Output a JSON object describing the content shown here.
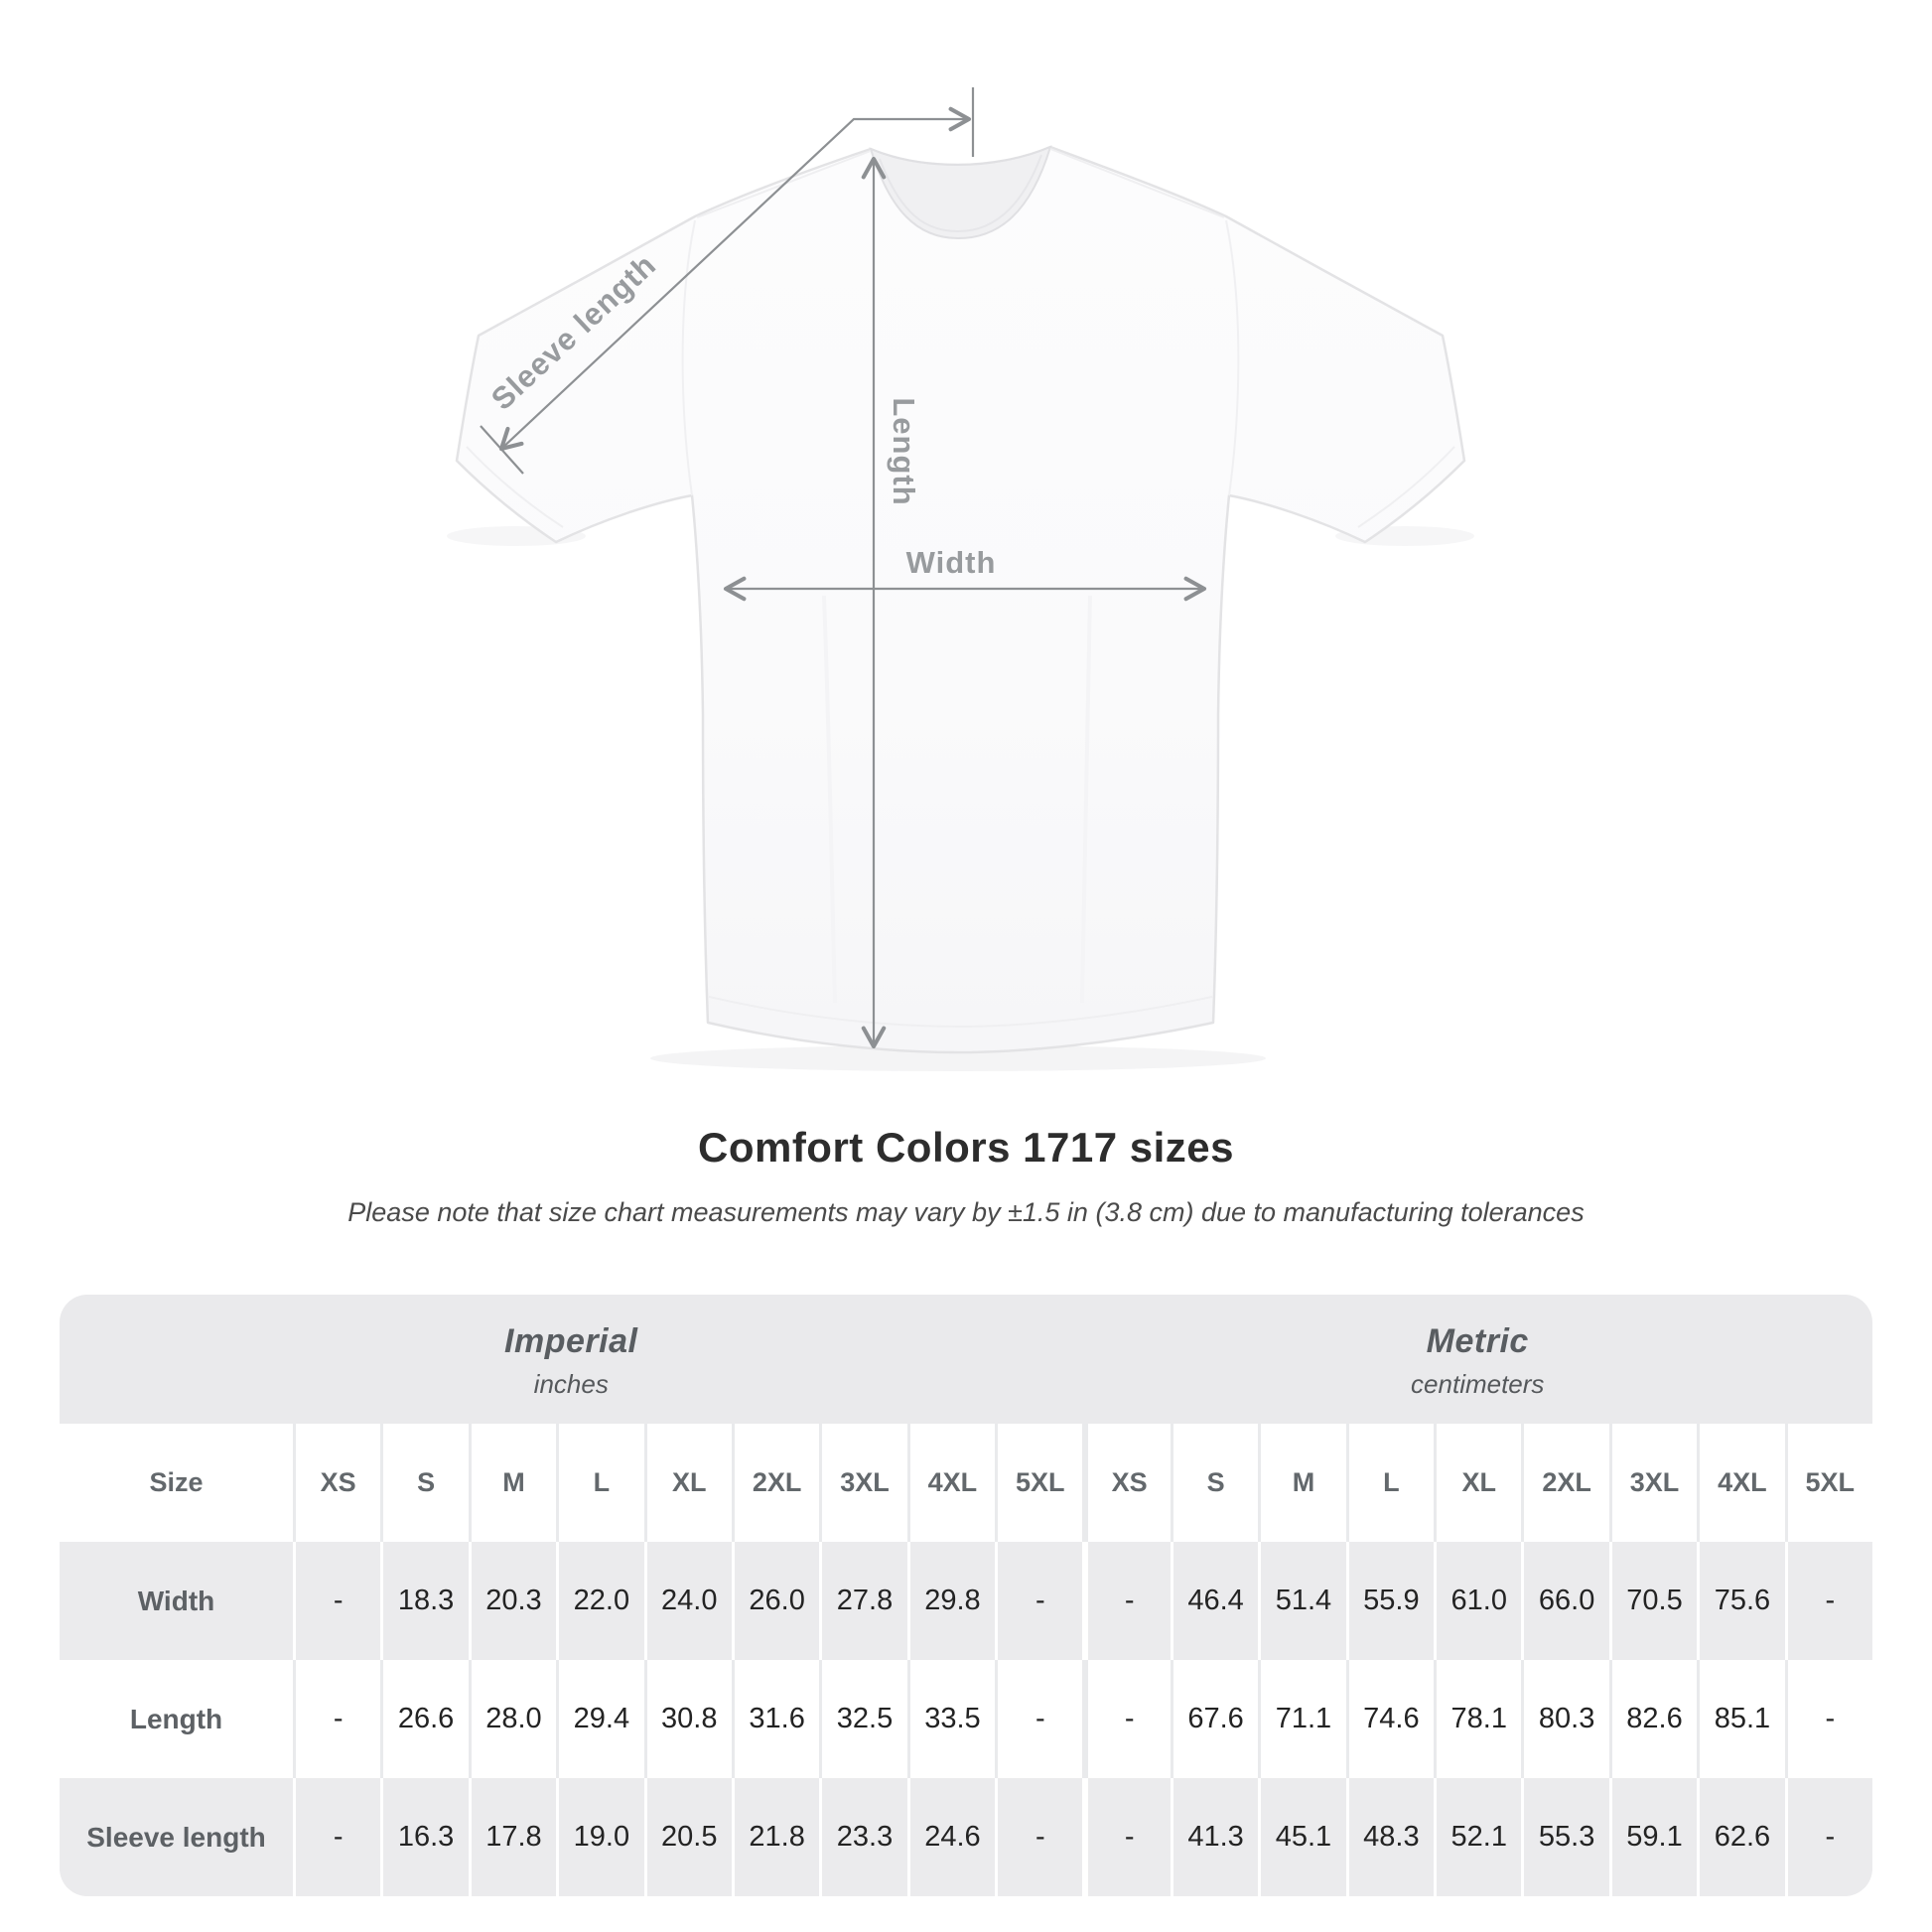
{
  "title": "Comfort Colors 1717 sizes",
  "subtitle": "Please note that size chart measurements may vary by ±1.5 in (3.8 cm) due to manufacturing tolerances",
  "diagram": {
    "sleeve_label": "Sleeve length",
    "length_label": "Length",
    "width_label": "Width",
    "line_color": "#8d9093",
    "label_color": "#989b9e"
  },
  "colors": {
    "band_bg": "#eaeaec",
    "row_alt_bg": "#ebebed",
    "header_text": "#63686c",
    "value_text": "#232323",
    "title_text": "#2d2d2d"
  },
  "chart_data": {
    "type": "table",
    "title": "Comfort Colors 1717 sizes",
    "note": "Please note that size chart measurements may vary by ±1.5 in (3.8 cm) due to manufacturing tolerances",
    "size_header": "Size",
    "sizes": [
      "XS",
      "S",
      "M",
      "L",
      "XL",
      "2XL",
      "3XL",
      "4XL",
      "5XL"
    ],
    "column_groups": [
      {
        "label": "Imperial",
        "sublabel": "inches"
      },
      {
        "label": "Metric",
        "sublabel": "centimeters"
      }
    ],
    "rows": [
      {
        "label": "Width",
        "imperial": [
          "-",
          "18.3",
          "20.3",
          "22.0",
          "24.0",
          "26.0",
          "27.8",
          "29.8",
          "-"
        ],
        "metric": [
          "-",
          "46.4",
          "51.4",
          "55.9",
          "61.0",
          "66.0",
          "70.5",
          "75.6",
          "-"
        ]
      },
      {
        "label": "Length",
        "imperial": [
          "-",
          "26.6",
          "28.0",
          "29.4",
          "30.8",
          "31.6",
          "32.5",
          "33.5",
          "-"
        ],
        "metric": [
          "-",
          "67.6",
          "71.1",
          "74.6",
          "78.1",
          "80.3",
          "82.6",
          "85.1",
          "-"
        ]
      },
      {
        "label": "Sleeve length",
        "imperial": [
          "-",
          "16.3",
          "17.8",
          "19.0",
          "20.5",
          "21.8",
          "23.3",
          "24.6",
          "-"
        ],
        "metric": [
          "-",
          "41.3",
          "45.1",
          "48.3",
          "52.1",
          "55.3",
          "59.1",
          "62.6",
          "-"
        ]
      }
    ]
  }
}
